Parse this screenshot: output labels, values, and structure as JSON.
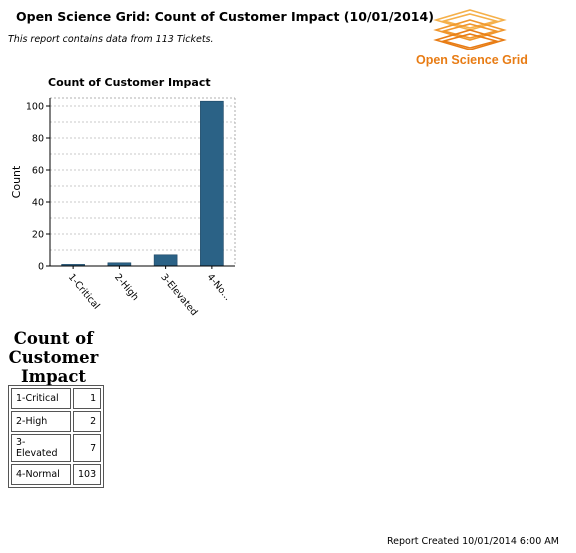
{
  "report": {
    "title": "Open Science Grid: Count of Customer Impact (10/01/2014)",
    "subtitle": "This report contains data from 113 Tickets."
  },
  "logo": {
    "text": "Open Science Grid",
    "icon": "stacked-diamond-grid-icon",
    "color": "#e87c14"
  },
  "chart_data": {
    "type": "bar",
    "title": "Count of Customer Impact",
    "xlabel": "",
    "ylabel": "Count",
    "categories": [
      "1-Critical",
      "2-High",
      "3-Elevated",
      "4-No..."
    ],
    "values": [
      1,
      2,
      7,
      103
    ],
    "ylim": [
      0,
      105
    ],
    "yticks": [
      0,
      20,
      40,
      60,
      80,
      100
    ],
    "grid": true,
    "bar_color": "#2b6286"
  },
  "table": {
    "title": "Count of Customer Impact",
    "rows": [
      {
        "category": "1-Critical",
        "count": "1"
      },
      {
        "category": "2-High",
        "count": "2"
      },
      {
        "category": "3-Elevated",
        "count": "7"
      },
      {
        "category": "4-Normal",
        "count": "103"
      }
    ]
  },
  "footer": "Report Created 10/01/2014 6:00 AM"
}
